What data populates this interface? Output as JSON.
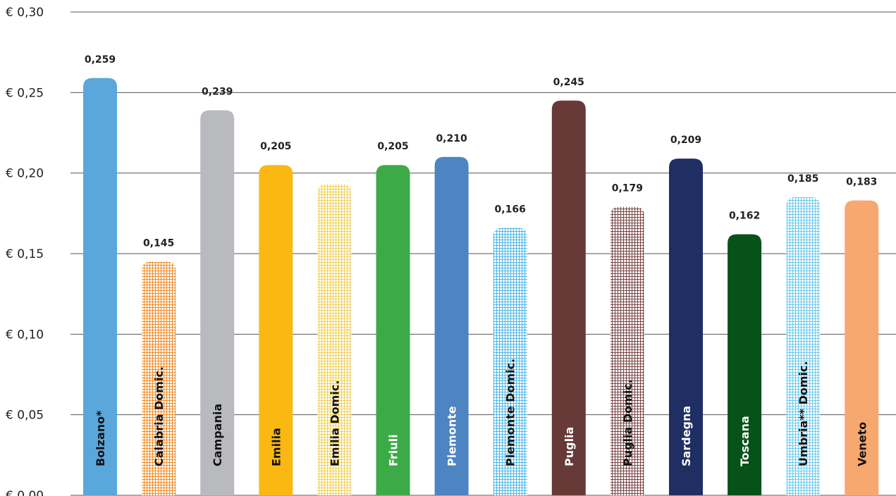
{
  "chart_data": {
    "type": "bar",
    "title": "",
    "xlabel": "",
    "ylabel": "",
    "ylim": [
      0,
      0.3
    ],
    "yticks": [
      0,
      0.05,
      0.1,
      0.15,
      0.2,
      0.25,
      0.3
    ],
    "ytick_labels": [
      "€ 0,00",
      "€ 0,05",
      "€ 0,10",
      "€ 0,15",
      "€ 0,20",
      "€ 0,25",
      "€ 0,30"
    ],
    "grid": true,
    "categories": [
      "Bolzano*",
      "Calabria Domic.",
      "Campania",
      "Emilia",
      "Emilia Domic.",
      "Friuli",
      "Piemonte",
      "Piemonte Domic.",
      "Puglia",
      "Puglia Domic.",
      "Sardegna",
      "Toscana",
      "Umbria** Domic.",
      "Veneto"
    ],
    "values": [
      0.259,
      0.145,
      0.239,
      0.205,
      0.193,
      0.205,
      0.21,
      0.166,
      0.245,
      0.179,
      0.209,
      0.162,
      0.185,
      0.183
    ],
    "data_labels": [
      "0,259",
      "0,145",
      "0,239",
      "0,205",
      "",
      "0,205",
      "0,210",
      "0,166",
      "0,245",
      "0,179",
      "0,209",
      "0,162",
      "0,185",
      "0,183"
    ],
    "colors": [
      "#5aa7dc",
      "#f08a24",
      "#b9babd",
      "#fbb813",
      "#f2d054",
      "#3daa48",
      "#4d84c2",
      "#4fb6e3",
      "#673a37",
      "#7a4545",
      "#1f2e63",
      "#075219",
      "#6cc9ec",
      "#f7a86f"
    ],
    "hatched": [
      false,
      true,
      false,
      false,
      true,
      false,
      false,
      true,
      false,
      true,
      false,
      false,
      true,
      false
    ],
    "label_colors": [
      "#111111",
      "#111111",
      "#111111",
      "#111111",
      "#111111",
      "#ffffff",
      "#ffffff",
      "#111111",
      "#ffffff",
      "#111111",
      "#ffffff",
      "#ffffff",
      "#111111",
      "#111111"
    ]
  }
}
